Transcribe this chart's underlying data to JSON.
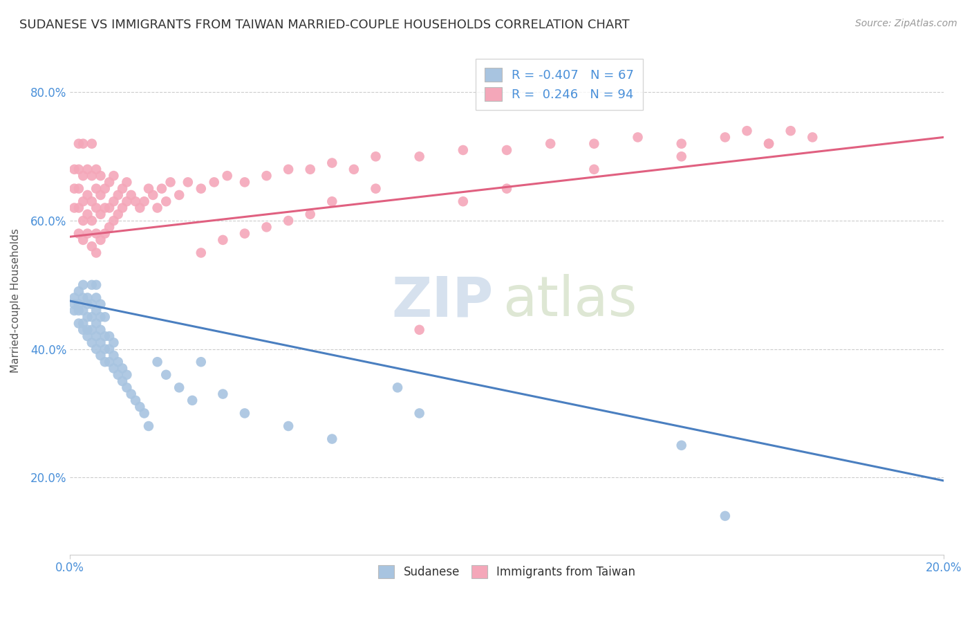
{
  "title": "SUDANESE VS IMMIGRANTS FROM TAIWAN MARRIED-COUPLE HOUSEHOLDS CORRELATION CHART",
  "source": "Source: ZipAtlas.com",
  "ylabel": "Married-couple Households",
  "xlim": [
    0.0,
    0.2
  ],
  "ylim": [
    0.08,
    0.87
  ],
  "yticks": [
    0.2,
    0.4,
    0.6,
    0.8
  ],
  "ytick_labels": [
    "20.0%",
    "40.0%",
    "60.0%",
    "80.0%"
  ],
  "legend": {
    "blue_R": "-0.407",
    "blue_N": "67",
    "pink_R": "0.246",
    "pink_N": "94"
  },
  "blue_color": "#a8c4e0",
  "pink_color": "#f4a7b9",
  "blue_line_color": "#4a7fc0",
  "pink_line_color": "#e06080",
  "blue_trend": [
    0.475,
    0.195
  ],
  "pink_trend": [
    0.575,
    0.73
  ],
  "sudanese_x": [
    0.001,
    0.001,
    0.001,
    0.002,
    0.002,
    0.002,
    0.002,
    0.003,
    0.003,
    0.003,
    0.003,
    0.003,
    0.004,
    0.004,
    0.004,
    0.004,
    0.004,
    0.005,
    0.005,
    0.005,
    0.005,
    0.005,
    0.006,
    0.006,
    0.006,
    0.006,
    0.006,
    0.006,
    0.007,
    0.007,
    0.007,
    0.007,
    0.007,
    0.008,
    0.008,
    0.008,
    0.008,
    0.009,
    0.009,
    0.009,
    0.01,
    0.01,
    0.01,
    0.011,
    0.011,
    0.012,
    0.012,
    0.013,
    0.013,
    0.014,
    0.015,
    0.016,
    0.017,
    0.018,
    0.02,
    0.022,
    0.025,
    0.028,
    0.03,
    0.035,
    0.04,
    0.05,
    0.06,
    0.075,
    0.08,
    0.14,
    0.15
  ],
  "sudanese_y": [
    0.47,
    0.46,
    0.48,
    0.44,
    0.46,
    0.47,
    0.49,
    0.43,
    0.44,
    0.46,
    0.48,
    0.5,
    0.42,
    0.43,
    0.45,
    0.47,
    0.48,
    0.41,
    0.43,
    0.45,
    0.47,
    0.5,
    0.4,
    0.42,
    0.44,
    0.46,
    0.48,
    0.5,
    0.39,
    0.41,
    0.43,
    0.45,
    0.47,
    0.38,
    0.4,
    0.42,
    0.45,
    0.38,
    0.4,
    0.42,
    0.37,
    0.39,
    0.41,
    0.36,
    0.38,
    0.35,
    0.37,
    0.34,
    0.36,
    0.33,
    0.32,
    0.31,
    0.3,
    0.28,
    0.38,
    0.36,
    0.34,
    0.32,
    0.38,
    0.33,
    0.3,
    0.28,
    0.26,
    0.34,
    0.3,
    0.25,
    0.14
  ],
  "taiwan_x": [
    0.001,
    0.001,
    0.001,
    0.002,
    0.002,
    0.002,
    0.002,
    0.002,
    0.003,
    0.003,
    0.003,
    0.003,
    0.003,
    0.004,
    0.004,
    0.004,
    0.004,
    0.005,
    0.005,
    0.005,
    0.005,
    0.005,
    0.006,
    0.006,
    0.006,
    0.006,
    0.006,
    0.007,
    0.007,
    0.007,
    0.007,
    0.008,
    0.008,
    0.008,
    0.009,
    0.009,
    0.009,
    0.01,
    0.01,
    0.01,
    0.011,
    0.011,
    0.012,
    0.012,
    0.013,
    0.013,
    0.014,
    0.015,
    0.016,
    0.017,
    0.018,
    0.019,
    0.02,
    0.021,
    0.022,
    0.023,
    0.025,
    0.027,
    0.03,
    0.033,
    0.036,
    0.04,
    0.045,
    0.05,
    0.055,
    0.06,
    0.065,
    0.07,
    0.08,
    0.09,
    0.1,
    0.11,
    0.12,
    0.13,
    0.14,
    0.15,
    0.155,
    0.16,
    0.165,
    0.17,
    0.03,
    0.035,
    0.04,
    0.045,
    0.05,
    0.055,
    0.06,
    0.07,
    0.08,
    0.09,
    0.1,
    0.12,
    0.14,
    0.16
  ],
  "taiwan_y": [
    0.62,
    0.65,
    0.68,
    0.58,
    0.62,
    0.65,
    0.68,
    0.72,
    0.57,
    0.6,
    0.63,
    0.67,
    0.72,
    0.58,
    0.61,
    0.64,
    0.68,
    0.56,
    0.6,
    0.63,
    0.67,
    0.72,
    0.55,
    0.58,
    0.62,
    0.65,
    0.68,
    0.57,
    0.61,
    0.64,
    0.67,
    0.58,
    0.62,
    0.65,
    0.59,
    0.62,
    0.66,
    0.6,
    0.63,
    0.67,
    0.61,
    0.64,
    0.62,
    0.65,
    0.63,
    0.66,
    0.64,
    0.63,
    0.62,
    0.63,
    0.65,
    0.64,
    0.62,
    0.65,
    0.63,
    0.66,
    0.64,
    0.66,
    0.65,
    0.66,
    0.67,
    0.66,
    0.67,
    0.68,
    0.68,
    0.69,
    0.68,
    0.7,
    0.7,
    0.71,
    0.71,
    0.72,
    0.72,
    0.73,
    0.72,
    0.73,
    0.74,
    0.72,
    0.74,
    0.73,
    0.55,
    0.57,
    0.58,
    0.59,
    0.6,
    0.61,
    0.63,
    0.65,
    0.43,
    0.63,
    0.65,
    0.68,
    0.7,
    0.72
  ]
}
